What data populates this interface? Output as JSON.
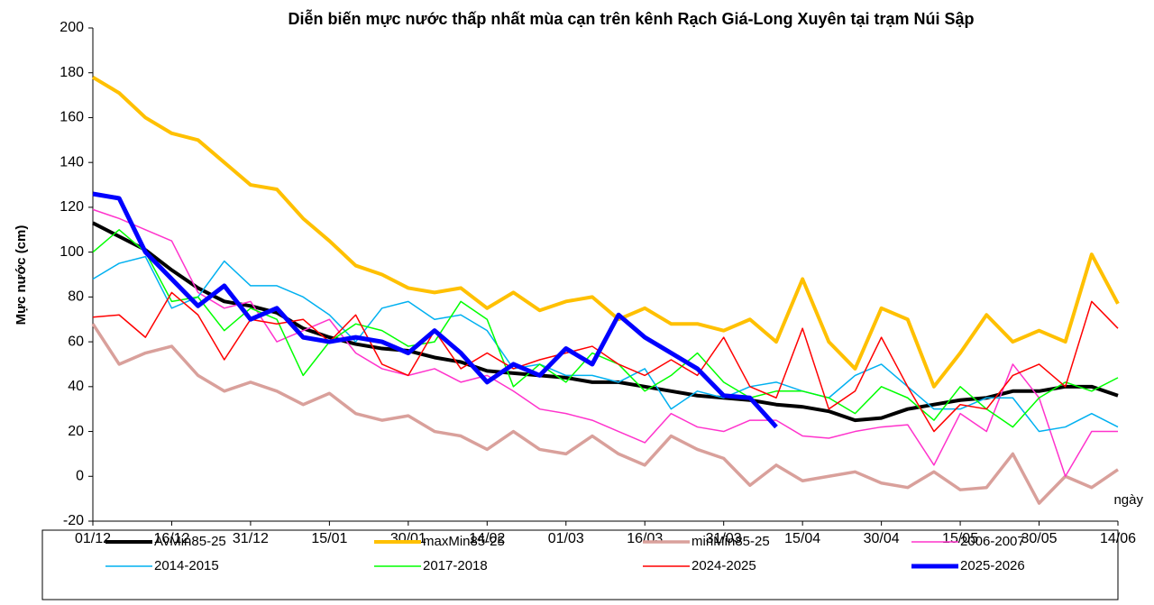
{
  "chart_data": {
    "type": "line",
    "title": "Diễn biến mực nước thấp nhất mùa cạn trên kênh Rạch Giá-Long Xuyên tại trạm Núi Sập",
    "y_label": "Mực nước (cm)",
    "x_label": "ngày",
    "x": [
      0,
      5,
      10,
      15,
      20,
      25,
      30,
      35,
      40,
      45,
      50,
      55,
      60,
      65,
      70,
      75,
      80,
      85,
      90,
      95,
      100,
      105,
      110,
      115,
      120,
      125,
      130,
      135,
      140,
      145,
      150,
      155,
      160,
      165,
      170,
      175,
      180,
      185,
      190,
      195
    ],
    "xlim": [
      0,
      195
    ],
    "xticks": [
      {
        "value": 0,
        "label": "01/12"
      },
      {
        "value": 15,
        "label": "16/12"
      },
      {
        "value": 30,
        "label": "31/12"
      },
      {
        "value": 45,
        "label": "15/01"
      },
      {
        "value": 60,
        "label": "30/01"
      },
      {
        "value": 75,
        "label": "14/02"
      },
      {
        "value": 90,
        "label": "01/03"
      },
      {
        "value": 105,
        "label": "16/03"
      },
      {
        "value": 120,
        "label": "31/03"
      },
      {
        "value": 135,
        "label": "15/04"
      },
      {
        "value": 150,
        "label": "30/04"
      },
      {
        "value": 165,
        "label": "15/05"
      },
      {
        "value": 180,
        "label": "30/05"
      },
      {
        "value": 195,
        "label": "14/06"
      }
    ],
    "ylim": [
      -20,
      200
    ],
    "yticks": [
      -20,
      0,
      20,
      40,
      60,
      80,
      100,
      120,
      140,
      160,
      180,
      200
    ],
    "legend": "bottom",
    "series": [
      {
        "name": "AvMin85-25",
        "color": "#000000",
        "width": 4,
        "values": [
          113,
          107,
          101,
          92,
          84,
          78,
          76,
          73,
          66,
          62,
          59,
          57,
          56,
          53,
          51,
          47,
          46,
          45,
          44,
          42,
          42,
          40,
          38,
          36,
          35,
          34,
          32,
          31,
          29,
          25,
          26,
          30,
          32,
          34,
          35,
          38,
          38,
          40,
          40,
          36
        ]
      },
      {
        "name": "maxMin85-25",
        "color": "#ffc000",
        "width": 4,
        "values": [
          178,
          171,
          160,
          153,
          150,
          140,
          130,
          128,
          115,
          105,
          94,
          90,
          84,
          82,
          84,
          75,
          82,
          74,
          78,
          80,
          70,
          75,
          68,
          68,
          65,
          70,
          60,
          88,
          60,
          48,
          75,
          70,
          40,
          55,
          72,
          60,
          65,
          60,
          99,
          77
        ]
      },
      {
        "name": "minMin85-25",
        "color": "#d9a09b",
        "width": 3.5,
        "values": [
          68,
          50,
          55,
          58,
          45,
          38,
          42,
          38,
          32,
          37,
          28,
          25,
          27,
          20,
          18,
          12,
          20,
          12,
          10,
          18,
          10,
          5,
          18,
          12,
          8,
          -4,
          5,
          -2,
          0,
          2,
          -3,
          -5,
          2,
          -6,
          -5,
          10,
          -12,
          0,
          -5,
          3
        ]
      },
      {
        "name": "2006-2007",
        "color": "#ff33cc",
        "width": 1.5,
        "values": [
          119,
          115,
          110,
          105,
          82,
          75,
          78,
          60,
          65,
          70,
          55,
          48,
          45,
          48,
          42,
          45,
          38,
          30,
          28,
          25,
          20,
          15,
          28,
          22,
          20,
          25,
          25,
          18,
          17,
          20,
          22,
          23,
          5,
          28,
          20,
          50,
          35,
          0,
          20,
          20
        ]
      },
      {
        "name": "2014-2015",
        "color": "#00b0f0",
        "width": 1.5,
        "values": [
          88,
          95,
          98,
          75,
          80,
          96,
          85,
          85,
          80,
          72,
          60,
          75,
          78,
          70,
          72,
          65,
          48,
          50,
          45,
          45,
          42,
          48,
          30,
          38,
          35,
          40,
          42,
          38,
          35,
          45,
          50,
          40,
          30,
          30,
          35,
          35,
          20,
          22,
          28,
          22
        ]
      },
      {
        "name": "2017-2018",
        "color": "#00ff00",
        "width": 1.5,
        "values": [
          100,
          110,
          100,
          78,
          80,
          65,
          75,
          70,
          45,
          60,
          68,
          65,
          58,
          60,
          78,
          70,
          40,
          50,
          42,
          55,
          50,
          38,
          45,
          55,
          42,
          35,
          38,
          38,
          35,
          28,
          40,
          35,
          25,
          40,
          30,
          22,
          35,
          42,
          38,
          44
        ]
      },
      {
        "name": "2024-2025",
        "color": "#ff0000",
        "width": 1.5,
        "values": [
          71,
          72,
          62,
          82,
          72,
          52,
          70,
          68,
          70,
          60,
          72,
          50,
          45,
          65,
          48,
          55,
          48,
          52,
          55,
          58,
          50,
          45,
          52,
          45,
          62,
          40,
          35,
          66,
          30,
          38,
          62,
          40,
          20,
          32,
          30,
          45,
          50,
          40,
          78,
          66
        ]
      },
      {
        "name": "2025-2026",
        "color": "#0000ff",
        "width": 5,
        "values": [
          126,
          124,
          100,
          88,
          76,
          85,
          70,
          75,
          62,
          60,
          62,
          60,
          55,
          65,
          55,
          42,
          50,
          45,
          57,
          50,
          72,
          62,
          55,
          48,
          36,
          35,
          22,
          null,
          null,
          null,
          null,
          null,
          null,
          null,
          null,
          null,
          null,
          null,
          null,
          null
        ]
      }
    ]
  }
}
